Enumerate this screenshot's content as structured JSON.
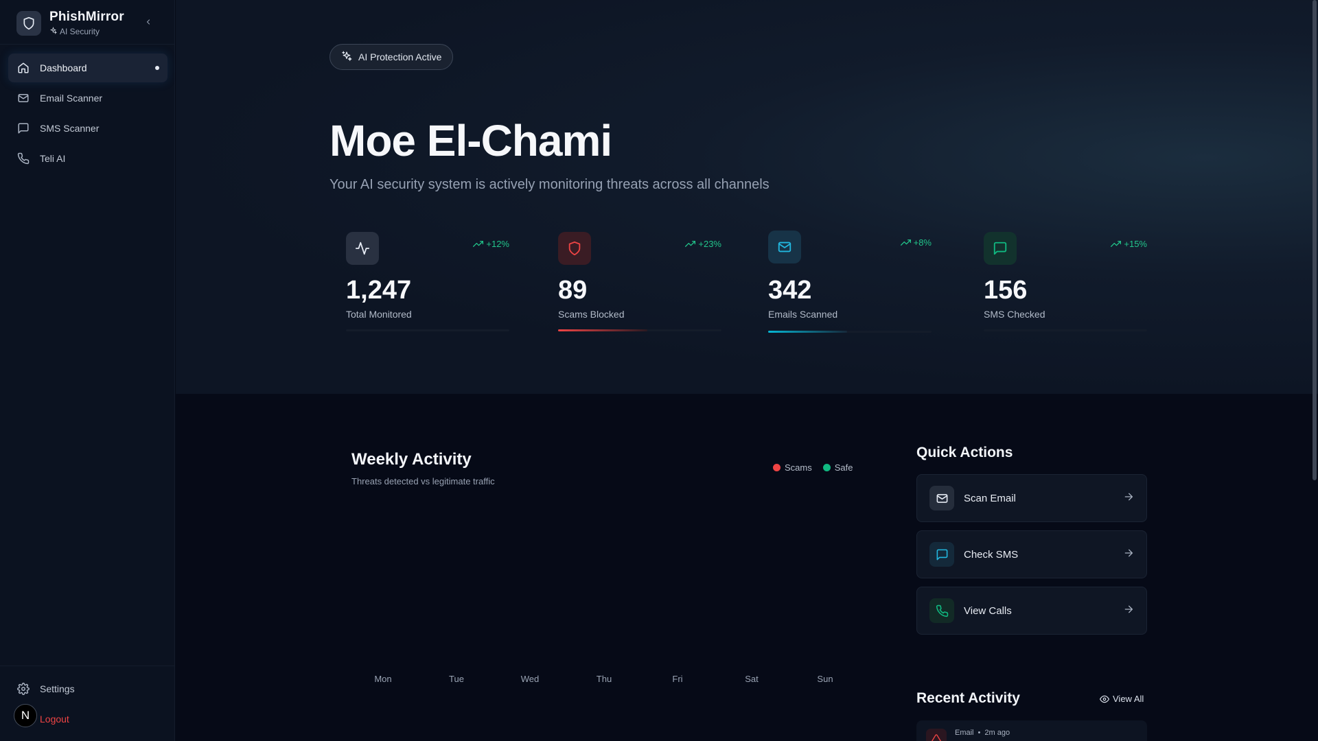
{
  "brand": {
    "name": "PhishMirror",
    "subtitle": "AI Security"
  },
  "sidebar": {
    "items": [
      {
        "label": "Dashboard",
        "icon": "home-icon",
        "active": true
      },
      {
        "label": "Email Scanner",
        "icon": "mail-icon"
      },
      {
        "label": "SMS Scanner",
        "icon": "message-icon"
      },
      {
        "label": "Teli AI",
        "icon": "phone-icon"
      }
    ],
    "settings_label": "Settings",
    "logout_label": "Logout",
    "avatar_initial": "N"
  },
  "hero": {
    "badge": "AI Protection Active",
    "name": "Moe El-Chami",
    "subtitle": "Your AI security system is actively monitoring threats across all channels"
  },
  "stats": [
    {
      "value": "1,247",
      "label": "Total Monitored",
      "change": "+12%",
      "icon": "activity-icon"
    },
    {
      "value": "89",
      "label": "Scams Blocked",
      "change": "+23%",
      "icon": "shield-icon"
    },
    {
      "value": "342",
      "label": "Emails Scanned",
      "change": "+8%",
      "icon": "mail-icon"
    },
    {
      "value": "156",
      "label": "SMS Checked",
      "change": "+15%",
      "icon": "message-icon"
    }
  ],
  "weekly": {
    "title": "Weekly Activity",
    "subtitle": "Threats detected vs legitimate traffic",
    "legend": {
      "scams": "Scams",
      "safe": "Safe"
    },
    "days": [
      "Mon",
      "Tue",
      "Wed",
      "Thu",
      "Fri",
      "Sat",
      "Sun"
    ]
  },
  "quick_actions": {
    "title": "Quick Actions",
    "items": [
      {
        "label": "Scan Email",
        "icon": "mail-icon"
      },
      {
        "label": "Check SMS",
        "icon": "message-icon"
      },
      {
        "label": "View Calls",
        "icon": "phone-icon"
      }
    ]
  },
  "recent_activity": {
    "title": "Recent Activity",
    "view_all": "View All",
    "items": [
      {
        "type": "Email",
        "time": "2m ago"
      }
    ]
  },
  "colors": {
    "accent_green": "#22c58b",
    "scam_red": "#ef4444",
    "safe_green": "#10b981",
    "cyan": "#06b6d4"
  }
}
